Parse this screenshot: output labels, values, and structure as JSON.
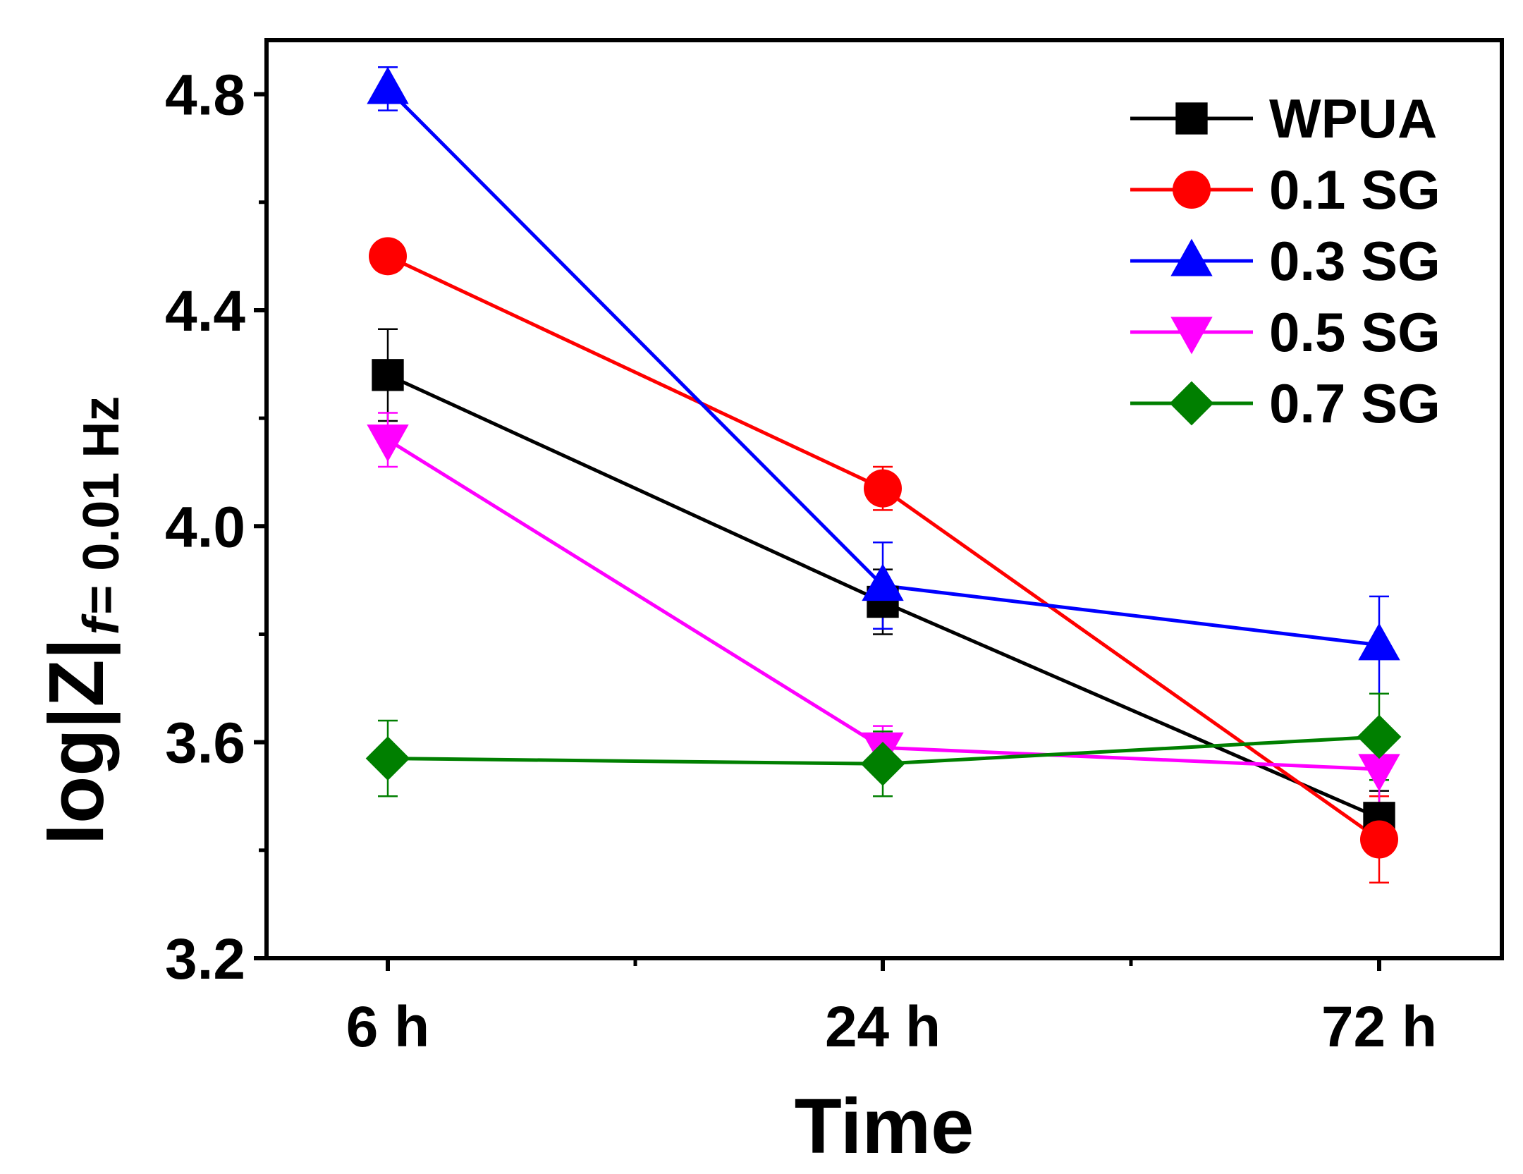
{
  "chart_data": {
    "type": "line",
    "title": "",
    "xlabel": "Time",
    "ylabel_main": "log|Z|",
    "ylabel_sub_italic": "f",
    "ylabel_sub_rest": " = 0.01 Hz",
    "categories": [
      "6 h",
      "24 h",
      "72 h"
    ],
    "ylim": [
      3.2,
      4.9
    ],
    "yticks": [
      3.2,
      3.6,
      4.0,
      4.4,
      4.8
    ],
    "ytick_labels": [
      "3.2",
      "3.6",
      "4.0",
      "4.4",
      "4.8"
    ],
    "legend_position": "top-right",
    "series": [
      {
        "name": "WPUA",
        "color": "#000000",
        "marker": "square",
        "values": [
          4.28,
          3.86,
          3.46
        ],
        "errors": [
          0.085,
          0.06,
          0.05
        ]
      },
      {
        "name": "0.1 SG",
        "color": "#ff0000",
        "marker": "circle",
        "values": [
          4.5,
          4.07,
          3.42
        ],
        "errors": [
          0.02,
          0.04,
          0.08
        ]
      },
      {
        "name": "0.3 SG",
        "color": "#0000ff",
        "marker": "triangle-up",
        "values": [
          4.81,
          3.89,
          3.78
        ],
        "errors": [
          0.04,
          0.08,
          0.09
        ]
      },
      {
        "name": "0.5 SG",
        "color": "#ff00ff",
        "marker": "triangle-down",
        "values": [
          4.16,
          3.59,
          3.55
        ],
        "errors": [
          0.05,
          0.04,
          0.08
        ]
      },
      {
        "name": "0.7 SG",
        "color": "#007f00",
        "marker": "diamond",
        "values": [
          3.57,
          3.56,
          3.61
        ],
        "errors": [
          0.07,
          0.06,
          0.08
        ]
      }
    ]
  }
}
